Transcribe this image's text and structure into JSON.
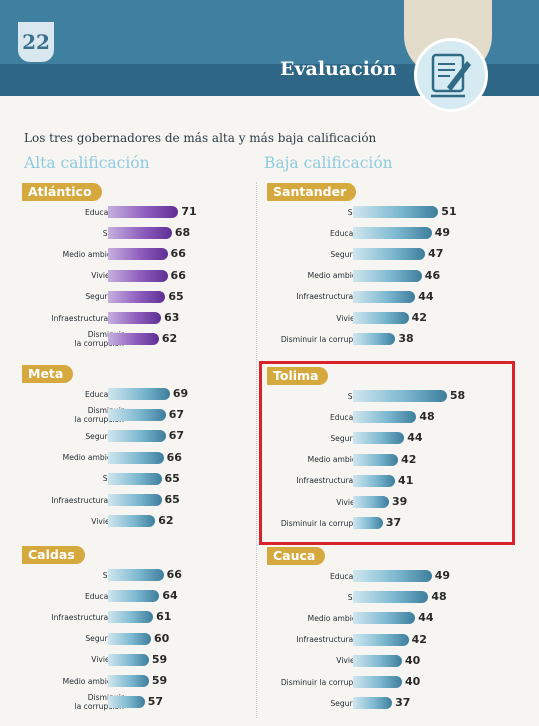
{
  "header": {
    "page_number": "22",
    "section_title": "Evaluación",
    "icon": "document-quill-icon"
  },
  "intro": "Los tres gobernadores de más alta y más baja calificación",
  "columns": {
    "left_heading": "Alta calificación",
    "right_heading": "Baja calificación"
  },
  "colors": {
    "header_blue": "#3f7f9f",
    "badge_gold": "#d6a93e",
    "bar_purple": "#7a47ab",
    "bar_blue": "#5e9fbd",
    "highlight_red": "#d8232a",
    "heading_light_blue": "#8ecbe0"
  },
  "highlighted_panel": "Tolima",
  "chart_data": [
    {
      "type": "bar",
      "orientation": "horizontal",
      "title": "Atlántico",
      "categories": [
        "Educación",
        "Salud",
        "Medio ambiente",
        "Vivienda",
        "Seguridad",
        "Infraestructura vial",
        "Disminuir\nla corrupción"
      ],
      "values": [
        71,
        68,
        66,
        66,
        65,
        63,
        62
      ]
    },
    {
      "type": "bar",
      "orientation": "horizontal",
      "title": "Meta",
      "categories": [
        "Educación",
        "Disminuir\nla corrupción",
        "Seguridad",
        "Medio ambiente",
        "Salud",
        "Infraestructura vial",
        "Vivienda"
      ],
      "values": [
        69,
        67,
        67,
        66,
        65,
        65,
        62
      ]
    },
    {
      "type": "bar",
      "orientation": "horizontal",
      "title": "Caldas",
      "categories": [
        "Salud",
        "Educación",
        "Infraestructura vial",
        "Seguridad",
        "Vivienda",
        "Medio ambiente",
        "Disminuir\nla corrupción"
      ],
      "values": [
        66,
        64,
        61,
        60,
        59,
        59,
        57
      ]
    },
    {
      "type": "bar",
      "orientation": "horizontal",
      "title": "Santander",
      "categories": [
        "Salud",
        "Educación",
        "Seguridad",
        "Medio ambiente",
        "Infraestructura vial",
        "Vivienda",
        "Disminuir la corrupción"
      ],
      "values": [
        51,
        49,
        47,
        46,
        44,
        42,
        38
      ]
    },
    {
      "type": "bar",
      "orientation": "horizontal",
      "title": "Tolima",
      "categories": [
        "Salud",
        "Educación",
        "Seguridad",
        "Medio ambiente",
        "Infraestructura vial",
        "Vivienda",
        "Disminuir la corrupción"
      ],
      "values": [
        58,
        48,
        44,
        42,
        41,
        39,
        37
      ]
    },
    {
      "type": "bar",
      "orientation": "horizontal",
      "title": "Cauca",
      "categories": [
        "Educación",
        "Salud",
        "Medio ambiente",
        "Infraestructura vial",
        "Vivienda",
        "Disminuir la corrupción",
        "Seguridad"
      ],
      "values": [
        49,
        48,
        44,
        42,
        40,
        40,
        37
      ]
    }
  ]
}
